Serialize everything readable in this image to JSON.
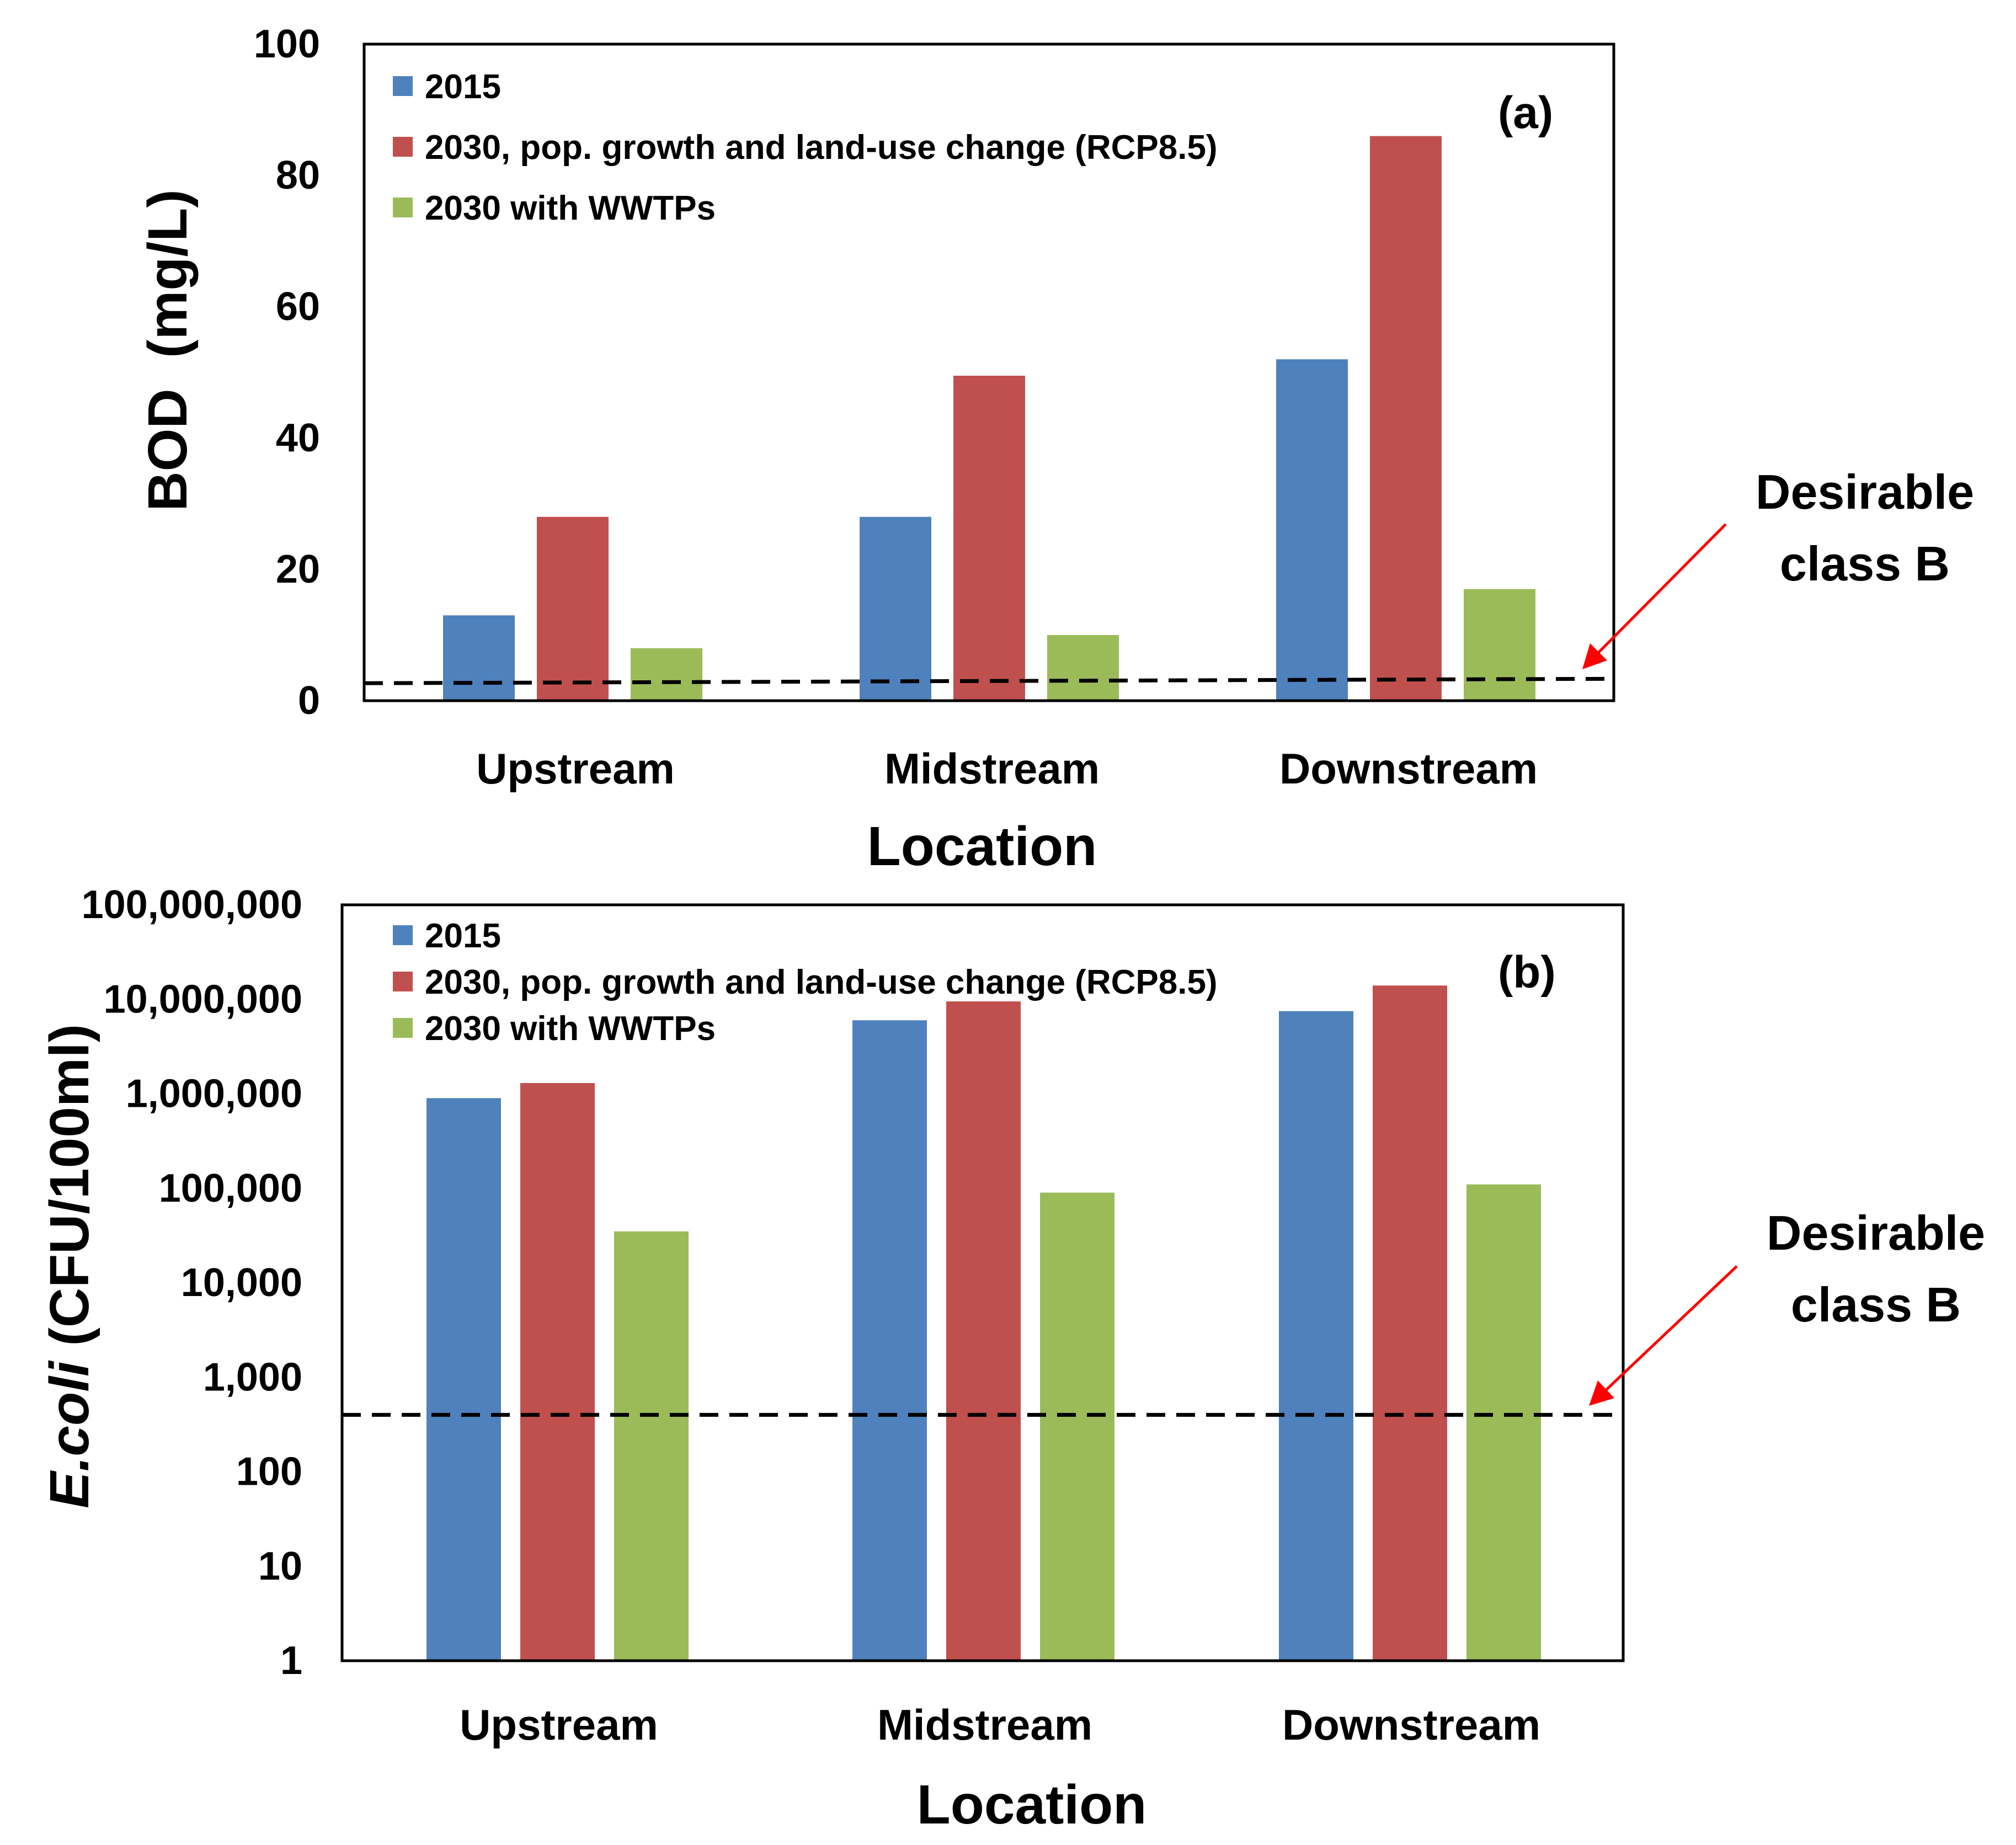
{
  "chart_data": [
    {
      "type": "bar",
      "panel_label": "(a)",
      "categories": [
        "Upstream",
        "Midstream",
        "Downstream"
      ],
      "series": [
        {
          "name": "2015",
          "color": "#4F81BD",
          "values": [
            13,
            28,
            52
          ]
        },
        {
          "name": "2030, pop. growth and land-use change (RCP8.5)",
          "color": "#C0504D",
          "values": [
            28,
            49.5,
            86
          ]
        },
        {
          "name": "2030 with WWTPs",
          "color": "#9BBB59",
          "values": [
            8,
            10,
            17
          ]
        }
      ],
      "xlabel": "Location",
      "ylabel": "BOD  (mg/L)",
      "ylim": [
        0,
        100
      ],
      "y_scale": "linear",
      "yticks": [
        0,
        20,
        40,
        60,
        80,
        100
      ],
      "ytick_labels": [
        "0",
        "20",
        "40",
        "60",
        "80",
        "100"
      ],
      "threshold": {
        "value": 3,
        "label_lines": [
          "Desirable",
          "class B"
        ]
      },
      "legend_position": "top-left"
    },
    {
      "type": "bar",
      "panel_label": "(b)",
      "categories": [
        "Upstream",
        "Midstream",
        "Downstream"
      ],
      "series": [
        {
          "name": "2015",
          "color": "#4F81BD",
          "values": [
            900000,
            6000000,
            7500000
          ]
        },
        {
          "name": "2030, pop. growth and land-use change (RCP8.5)",
          "color": "#C0504D",
          "values": [
            1300000,
            9500000,
            14000000
          ]
        },
        {
          "name": "2030 with WWTPs",
          "color": "#9BBB59",
          "values": [
            35000,
            90000,
            110000
          ]
        }
      ],
      "xlabel": "Location",
      "ylabel_italic": "E.coli",
      "ylabel_rest": " (CFU/100ml)",
      "ylim": [
        1,
        100000000
      ],
      "y_scale": "log",
      "yticks": [
        1,
        10,
        100,
        1000,
        10000,
        100000,
        1000000,
        10000000,
        100000000
      ],
      "ytick_labels": [
        "1",
        "10",
        "100",
        "1,000",
        "10,000",
        "100,000",
        "1,000,000",
        "10,000,000",
        "100,000,000"
      ],
      "threshold": {
        "value": 400,
        "label_lines": [
          "Desirable",
          "class B"
        ]
      },
      "legend_position": "top-left"
    }
  ]
}
